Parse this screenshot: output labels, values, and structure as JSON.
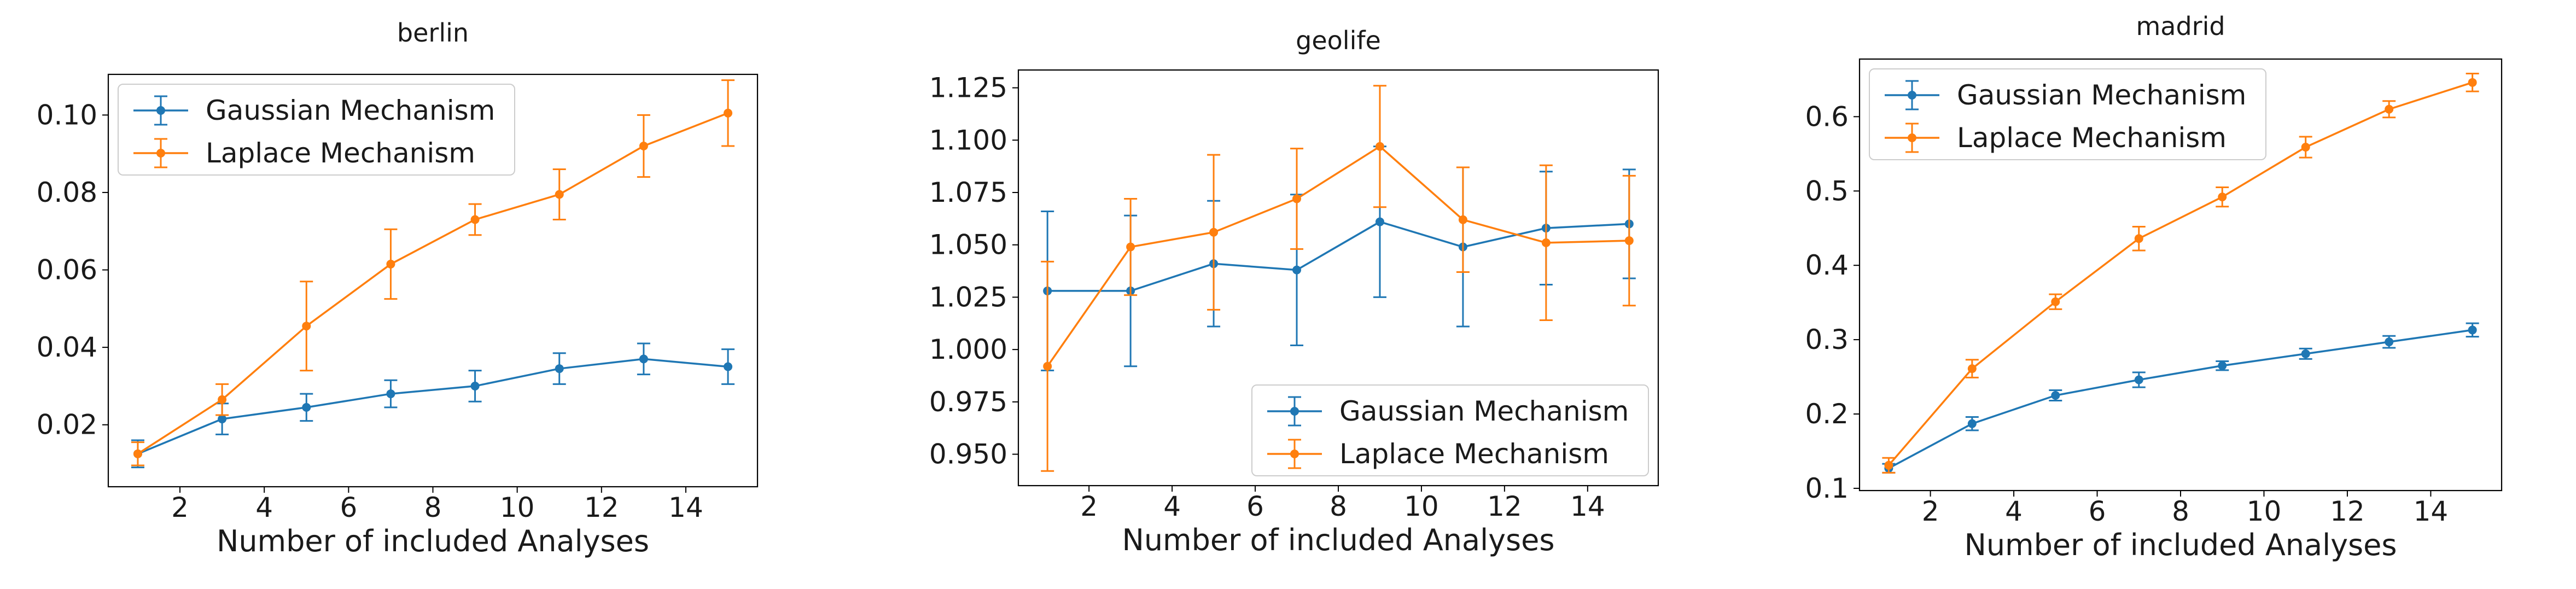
{
  "chart_data": [
    {
      "type": "line",
      "title": "berlin",
      "xlabel": "Number of included Analyses",
      "ylabel": "",
      "xlim": [
        0.3,
        15.7
      ],
      "ylim": [
        0.004,
        0.1105
      ],
      "xticks": [
        2,
        4,
        6,
        8,
        10,
        12,
        14
      ],
      "yticks": [
        0.02,
        0.04,
        0.06,
        0.08,
        0.1
      ],
      "ytick_labels": [
        "0.02",
        "0.04",
        "0.06",
        "0.08",
        "0.10"
      ],
      "legend_position": "top-left",
      "grid": false,
      "x": [
        1,
        3,
        5,
        7,
        9,
        11,
        13,
        15
      ],
      "series": [
        {
          "name": "Gaussian Mechanism",
          "color": "#1f77b4",
          "values": [
            0.0125,
            0.0215,
            0.0245,
            0.028,
            0.03,
            0.0345,
            0.037,
            0.035
          ],
          "errors": [
            0.0035,
            0.004,
            0.0035,
            0.0035,
            0.004,
            0.004,
            0.004,
            0.0045
          ]
        },
        {
          "name": "Laplace Mechanism",
          "color": "#ff7f0e",
          "values": [
            0.0125,
            0.0265,
            0.0455,
            0.0615,
            0.073,
            0.0795,
            0.092,
            0.1005
          ],
          "errors": [
            0.003,
            0.004,
            0.0115,
            0.009,
            0.004,
            0.0065,
            0.008,
            0.0085
          ]
        }
      ]
    },
    {
      "type": "line",
      "title": "geolife",
      "xlabel": "Number of included Analyses",
      "ylabel": "",
      "xlim": [
        0.3,
        15.7
      ],
      "ylim": [
        0.935,
        1.1335
      ],
      "xticks": [
        2,
        4,
        6,
        8,
        10,
        12,
        14
      ],
      "yticks": [
        0.95,
        0.975,
        1.0,
        1.025,
        1.05,
        1.075,
        1.1,
        1.125
      ],
      "ytick_labels": [
        "0.950",
        "0.975",
        "1.000",
        "1.025",
        "1.050",
        "1.075",
        "1.100",
        "1.125"
      ],
      "legend_position": "bottom-right",
      "grid": false,
      "x": [
        1,
        3,
        5,
        7,
        9,
        11,
        13,
        15
      ],
      "series": [
        {
          "name": "Gaussian Mechanism",
          "color": "#1f77b4",
          "values": [
            1.028,
            1.028,
            1.041,
            1.038,
            1.061,
            1.049,
            1.058,
            1.06
          ],
          "errors": [
            0.038,
            0.036,
            0.03,
            0.036,
            0.036,
            0.038,
            0.027,
            0.026
          ]
        },
        {
          "name": "Laplace Mechanism",
          "color": "#ff7f0e",
          "values": [
            0.992,
            1.049,
            1.056,
            1.072,
            1.097,
            1.062,
            1.051,
            1.052
          ],
          "errors": [
            0.05,
            0.023,
            0.037,
            0.024,
            0.029,
            0.025,
            0.037,
            0.031
          ]
        }
      ]
    },
    {
      "type": "line",
      "title": "madrid",
      "xlabel": "Number of included Analyses",
      "ylabel": "",
      "xlim": [
        0.3,
        15.7
      ],
      "ylim": [
        0.097,
        0.6775
      ],
      "xticks": [
        2,
        4,
        6,
        8,
        10,
        12,
        14
      ],
      "yticks": [
        0.1,
        0.2,
        0.3,
        0.4,
        0.5,
        0.6
      ],
      "ytick_labels": [
        "0.1",
        "0.2",
        "0.3",
        "0.4",
        "0.5",
        "0.6"
      ],
      "legend_position": "top-left",
      "grid": false,
      "x": [
        1,
        3,
        5,
        7,
        9,
        11,
        13,
        15
      ],
      "series": [
        {
          "name": "Gaussian Mechanism",
          "color": "#1f77b4",
          "values": [
            0.127,
            0.187,
            0.225,
            0.246,
            0.265,
            0.281,
            0.297,
            0.313
          ],
          "errors": [
            0.006,
            0.009,
            0.007,
            0.01,
            0.006,
            0.007,
            0.008,
            0.009
          ]
        },
        {
          "name": "Laplace Mechanism",
          "color": "#ff7f0e",
          "values": [
            0.131,
            0.261,
            0.351,
            0.436,
            0.492,
            0.559,
            0.61,
            0.646
          ],
          "errors": [
            0.01,
            0.012,
            0.01,
            0.016,
            0.013,
            0.014,
            0.011,
            0.012
          ]
        }
      ]
    }
  ]
}
